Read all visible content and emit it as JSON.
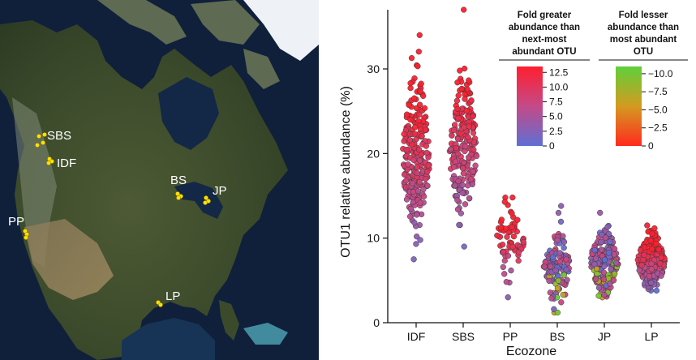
{
  "map": {
    "sites": [
      {
        "label": "SBS",
        "points": [
          [
            48,
            168
          ],
          [
            55,
            166
          ],
          [
            46,
            179
          ],
          [
            53,
            176
          ]
        ]
      },
      {
        "label": "IDF",
        "points": [
          [
            61,
            196
          ],
          [
            64,
            199
          ],
          [
            60,
            201
          ]
        ]
      },
      {
        "label": "BS",
        "points": [
          [
            219,
            239
          ],
          [
            223,
            242
          ],
          [
            220,
            244
          ]
        ]
      },
      {
        "label": "JP",
        "points": [
          [
            254,
            244
          ],
          [
            257,
            248
          ],
          [
            253,
            250
          ]
        ]
      },
      {
        "label": "PP",
        "points": [
          [
            31,
            285
          ],
          [
            33,
            289
          ],
          [
            32,
            293
          ]
        ]
      },
      {
        "label": "LP",
        "points": [
          [
            195,
            373
          ],
          [
            198,
            376
          ]
        ]
      }
    ]
  },
  "chart_data": {
    "type": "scatter",
    "subtype": "jitter-strip",
    "xlabel": "Ecozone",
    "ylabel": "OTU1 relative abundance (%)",
    "categories": [
      "IDF",
      "SBS",
      "PP",
      "BS",
      "JP",
      "LP"
    ],
    "ylim": [
      0,
      37
    ],
    "yticks": [
      0,
      10,
      20,
      30
    ],
    "groups": [
      {
        "name": "IDF",
        "n": 230,
        "center": 19.5,
        "spread": 4.5,
        "min": 7.5,
        "max": 34.0,
        "fold_positive": true
      },
      {
        "name": "SBS",
        "n": 220,
        "center": 20.5,
        "spread": 4.2,
        "min": 9.0,
        "max": 37.0,
        "fold_positive": true
      },
      {
        "name": "PP",
        "n": 70,
        "center": 9.8,
        "spread": 2.0,
        "min": 3.0,
        "max": 14.8,
        "fold_positive": true
      },
      {
        "name": "BS",
        "n": 130,
        "center": 6.2,
        "spread": 2.0,
        "min": 1.2,
        "max": 13.8,
        "fold_positive": false
      },
      {
        "name": "JP",
        "n": 180,
        "center": 7.2,
        "spread": 2.0,
        "min": 3.0,
        "max": 13.0,
        "fold_positive": false
      },
      {
        "name": "LP",
        "n": 220,
        "center": 7.2,
        "spread": 1.6,
        "min": 3.8,
        "max": 11.5,
        "fold_positive": true
      }
    ],
    "colorbars": [
      {
        "title": [
          "Fold greater",
          "abundance than",
          "next-most",
          "abundant OTU"
        ],
        "ticks": [
          "12.5",
          "10.0",
          "7.5",
          "5.0",
          "2.5",
          "0"
        ],
        "range": [
          0,
          13.5
        ],
        "colors": [
          "#ff1f2e",
          "#c44a88",
          "#5f6fd4"
        ]
      },
      {
        "title": [
          "Fold lesser",
          "abundance than",
          "most abundant",
          "OTU"
        ],
        "ticks": [
          "0",
          "−2.5",
          "−5.0",
          "−7.5",
          "−10.0"
        ],
        "range": [
          0,
          -11
        ],
        "colors": [
          "#5fd03a",
          "#d49a20",
          "#ff2a1e"
        ]
      }
    ]
  }
}
